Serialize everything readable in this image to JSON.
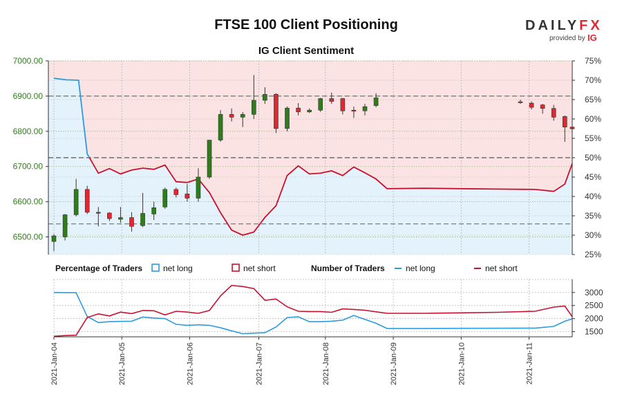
{
  "header": {
    "title": "FTSE 100 Client Positioning",
    "subtitle": "IG Client Sentiment",
    "logo_left": "DAILY",
    "logo_right": "FX",
    "provided_by": "provided by",
    "provider": "IG"
  },
  "colors": {
    "bull": "#2e7d1a",
    "bear": "#e3262f",
    "long_line": "#2b9be0",
    "short_line": "#c8102e",
    "long_fill": "#e4f2fb",
    "short_fill": "#fbe3e3"
  },
  "legend": {
    "pct_heading": "Percentage of Traders",
    "num_heading": "Number of Traders",
    "net_long": "net long",
    "net_short": "net short"
  },
  "chart_data": [
    {
      "type": "candlestick",
      "name": "price",
      "title": "IG Client Sentiment",
      "ylim": [
        6450,
        7000
      ],
      "y_ticks": [
        "7000.00",
        "6900.00",
        "6800.00",
        "6700.00",
        "6600.00",
        "6500.00"
      ],
      "y_tick_values": [
        7000,
        6900,
        6800,
        6700,
        6600,
        6500
      ],
      "x_range": [
        0,
        42
      ],
      "x_ticks": [
        "2021-Jan-04",
        "2021-Jan-05",
        "2021-Jan-06",
        "2021-Jan-07",
        "2021-Jan-08",
        "2021-Jan-09",
        "2021-Jan-10",
        "2021-Jan-11"
      ],
      "x_tick_pos": [
        0,
        5.5,
        11,
        16.6,
        22,
        27.5,
        33,
        38.5
      ],
      "ref_lines": [
        6900,
        6725,
        6537
      ],
      "candles": [
        {
          "t": 0,
          "o": 6487,
          "h": 6508,
          "l": 6460,
          "c": 6503
        },
        {
          "t": 0.9,
          "o": 6500,
          "h": 6565,
          "l": 6490,
          "c": 6563
        },
        {
          "t": 1.8,
          "o": 6563,
          "h": 6665,
          "l": 6558,
          "c": 6635
        },
        {
          "t": 2.7,
          "o": 6635,
          "h": 6645,
          "l": 6565,
          "c": 6570
        },
        {
          "t": 3.6,
          "o": 6570,
          "h": 6585,
          "l": 6530,
          "c": 6570
        },
        {
          "t": 4.5,
          "o": 6568,
          "h": 6570,
          "l": 6545,
          "c": 6552
        },
        {
          "t": 5.4,
          "o": 6550,
          "h": 6585,
          "l": 6540,
          "c": 6555
        },
        {
          "t": 6.3,
          "o": 6555,
          "h": 6570,
          "l": 6515,
          "c": 6530
        },
        {
          "t": 7.2,
          "o": 6532,
          "h": 6625,
          "l": 6528,
          "c": 6567
        },
        {
          "t": 8.1,
          "o": 6565,
          "h": 6600,
          "l": 6548,
          "c": 6583
        },
        {
          "t": 9.0,
          "o": 6585,
          "h": 6640,
          "l": 6580,
          "c": 6635
        },
        {
          "t": 9.9,
          "o": 6635,
          "h": 6640,
          "l": 6612,
          "c": 6620
        },
        {
          "t": 10.8,
          "o": 6622,
          "h": 6650,
          "l": 6600,
          "c": 6610
        },
        {
          "t": 11.7,
          "o": 6610,
          "h": 6695,
          "l": 6600,
          "c": 6670
        },
        {
          "t": 12.6,
          "o": 6670,
          "h": 6775,
          "l": 6665,
          "c": 6775
        },
        {
          "t": 13.5,
          "o": 6775,
          "h": 6860,
          "l": 6770,
          "c": 6848
        },
        {
          "t": 14.4,
          "o": 6848,
          "h": 6865,
          "l": 6828,
          "c": 6840
        },
        {
          "t": 15.3,
          "o": 6840,
          "h": 6855,
          "l": 6812,
          "c": 6848
        },
        {
          "t": 16.2,
          "o": 6848,
          "h": 6960,
          "l": 6835,
          "c": 6888
        },
        {
          "t": 17.1,
          "o": 6888,
          "h": 6925,
          "l": 6878,
          "c": 6905
        },
        {
          "t": 18.0,
          "o": 6905,
          "h": 6908,
          "l": 6795,
          "c": 6808
        },
        {
          "t": 18.9,
          "o": 6808,
          "h": 6870,
          "l": 6800,
          "c": 6866
        },
        {
          "t": 19.8,
          "o": 6866,
          "h": 6880,
          "l": 6845,
          "c": 6855
        },
        {
          "t": 20.7,
          "o": 6855,
          "h": 6865,
          "l": 6852,
          "c": 6860
        },
        {
          "t": 21.6,
          "o": 6860,
          "h": 6895,
          "l": 6855,
          "c": 6893
        },
        {
          "t": 22.5,
          "o": 6893,
          "h": 6910,
          "l": 6878,
          "c": 6885
        },
        {
          "t": 23.4,
          "o": 6893,
          "h": 6895,
          "l": 6848,
          "c": 6858
        },
        {
          "t": 24.3,
          "o": 6860,
          "h": 6870,
          "l": 6838,
          "c": 6858
        },
        {
          "t": 25.2,
          "o": 6858,
          "h": 6878,
          "l": 6845,
          "c": 6870
        },
        {
          "t": 26.1,
          "o": 6873,
          "h": 6908,
          "l": 6868,
          "c": 6895
        },
        {
          "t": 37.8,
          "o": 6884,
          "h": 6890,
          "l": 6878,
          "c": 6882
        },
        {
          "t": 38.7,
          "o": 6880,
          "h": 6885,
          "l": 6862,
          "c": 6868
        },
        {
          "t": 39.6,
          "o": 6875,
          "h": 6878,
          "l": 6850,
          "c": 6865
        },
        {
          "t": 40.5,
          "o": 6865,
          "h": 6875,
          "l": 6830,
          "c": 6840
        },
        {
          "t": 41.4,
          "o": 6842,
          "h": 6845,
          "l": 6770,
          "c": 6812
        },
        {
          "t": 42.0,
          "o": 6812,
          "h": 6815,
          "l": 6805,
          "c": 6807
        }
      ]
    },
    {
      "type": "area",
      "name": "percentage-of-traders",
      "ylim": [
        25,
        75
      ],
      "y_ticks": [
        "75%",
        "70%",
        "65%",
        "60%",
        "55%",
        "50%",
        "45%",
        "40%",
        "35%",
        "30%",
        "25%"
      ],
      "y_tick_values": [
        75,
        70,
        65,
        60,
        55,
        50,
        45,
        40,
        35,
        30,
        25
      ],
      "net_long_pct": [
        [
          0,
          70.5
        ],
        [
          1,
          70.1
        ],
        [
          2,
          70.0
        ],
        [
          2.7,
          51.0
        ],
        [
          3.6,
          46.0
        ],
        [
          4.5,
          47.2
        ],
        [
          5.4,
          45.8
        ],
        [
          6.3,
          46.8
        ],
        [
          7.2,
          47.3
        ],
        [
          8.1,
          47.0
        ],
        [
          9.0,
          48.1
        ],
        [
          9.9,
          43.8
        ],
        [
          10.8,
          43.6
        ],
        [
          11.7,
          44.5
        ],
        [
          12.6,
          41.0
        ],
        [
          13.5,
          35.8
        ],
        [
          14.4,
          31.3
        ],
        [
          15.3,
          30.0
        ],
        [
          16.2,
          30.8
        ],
        [
          17.1,
          34.6
        ],
        [
          18.0,
          37.6
        ],
        [
          18.9,
          45.4
        ],
        [
          19.8,
          47.9
        ],
        [
          20.7,
          45.8
        ],
        [
          21.6,
          46.0
        ],
        [
          22.5,
          46.6
        ],
        [
          23.4,
          45.4
        ],
        [
          24.3,
          47.6
        ],
        [
          25.2,
          46.1
        ],
        [
          26.1,
          44.5
        ],
        [
          27.0,
          42.0
        ],
        [
          30.0,
          42.1
        ],
        [
          33.0,
          42.0
        ],
        [
          36.0,
          41.9
        ],
        [
          39.0,
          41.8
        ],
        [
          40.5,
          41.3
        ],
        [
          41.4,
          43.2
        ],
        [
          42.0,
          48.5
        ]
      ]
    },
    {
      "type": "line",
      "name": "number-of-traders",
      "ylim": [
        1300,
        3500
      ],
      "y_ticks": [
        "3000",
        "2500",
        "2000",
        "1500"
      ],
      "y_tick_values": [
        3000,
        2500,
        2000,
        1500
      ],
      "series": [
        {
          "name": "net long",
          "points": [
            [
              0,
              3000
            ],
            [
              1,
              2990
            ],
            [
              1.8,
              2990
            ],
            [
              2.7,
              2080
            ],
            [
              3.6,
              1850
            ],
            [
              4.5,
              1880
            ],
            [
              5.4,
              1890
            ],
            [
              6.3,
              1900
            ],
            [
              7.2,
              2060
            ],
            [
              8.1,
              2020
            ],
            [
              9.0,
              2000
            ],
            [
              9.9,
              1780
            ],
            [
              10.8,
              1740
            ],
            [
              11.7,
              1760
            ],
            [
              12.6,
              1740
            ],
            [
              13.5,
              1650
            ],
            [
              14.4,
              1530
            ],
            [
              15.3,
              1420
            ],
            [
              16.2,
              1440
            ],
            [
              17.1,
              1460
            ],
            [
              18.0,
              1680
            ],
            [
              18.9,
              2040
            ],
            [
              19.8,
              2070
            ],
            [
              20.7,
              1880
            ],
            [
              21.6,
              1880
            ],
            [
              22.5,
              1900
            ],
            [
              23.4,
              1940
            ],
            [
              24.3,
              2120
            ],
            [
              25.2,
              1970
            ],
            [
              26.1,
              1820
            ],
            [
              27.0,
              1620
            ],
            [
              30.0,
              1620
            ],
            [
              33.0,
              1625
            ],
            [
              36.0,
              1630
            ],
            [
              39.0,
              1635
            ],
            [
              40.5,
              1700
            ],
            [
              41.4,
              1900
            ],
            [
              42.0,
              1990
            ]
          ]
        },
        {
          "name": "net short",
          "points": [
            [
              0,
              1320
            ],
            [
              1,
              1350
            ],
            [
              1.8,
              1360
            ],
            [
              2.7,
              2040
            ],
            [
              3.6,
              2180
            ],
            [
              4.5,
              2100
            ],
            [
              5.4,
              2250
            ],
            [
              6.3,
              2190
            ],
            [
              7.2,
              2310
            ],
            [
              8.1,
              2300
            ],
            [
              9.0,
              2140
            ],
            [
              9.9,
              2280
            ],
            [
              10.8,
              2250
            ],
            [
              11.7,
              2200
            ],
            [
              12.6,
              2310
            ],
            [
              13.5,
              2870
            ],
            [
              14.4,
              3270
            ],
            [
              15.3,
              3230
            ],
            [
              16.2,
              3150
            ],
            [
              17.1,
              2700
            ],
            [
              18.0,
              2750
            ],
            [
              18.9,
              2450
            ],
            [
              19.8,
              2280
            ],
            [
              20.7,
              2270
            ],
            [
              21.6,
              2270
            ],
            [
              22.5,
              2240
            ],
            [
              23.4,
              2370
            ],
            [
              24.3,
              2350
            ],
            [
              25.2,
              2320
            ],
            [
              26.1,
              2260
            ],
            [
              27.0,
              2200
            ],
            [
              30.0,
              2200
            ],
            [
              33.0,
              2220
            ],
            [
              36.0,
              2240
            ],
            [
              39.0,
              2280
            ],
            [
              40.5,
              2440
            ],
            [
              41.4,
              2480
            ],
            [
              42.0,
              2070
            ]
          ]
        }
      ]
    }
  ]
}
